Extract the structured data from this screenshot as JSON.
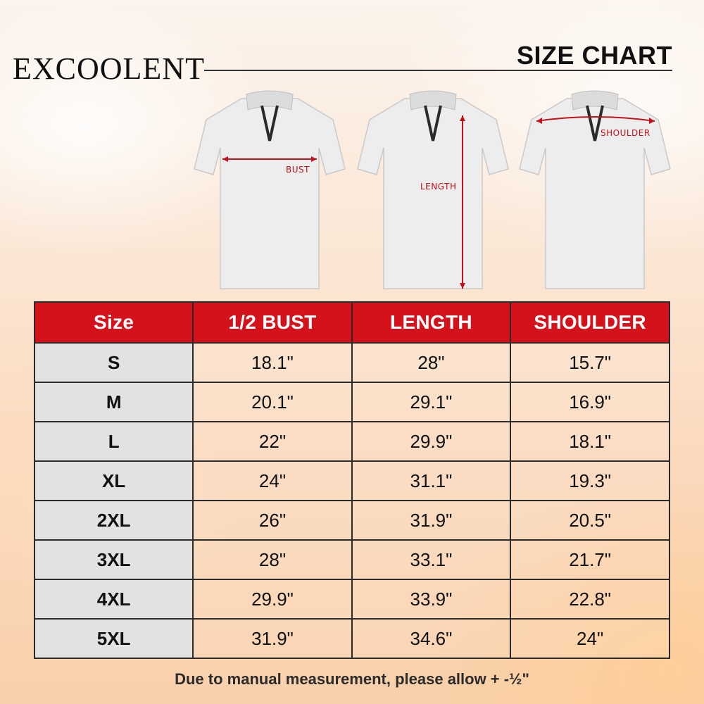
{
  "brand": "EXCOOLENT",
  "title": "SIZE CHART",
  "shirt_labels": {
    "bust": "BUST",
    "length": "LENGTH",
    "shoulder": "SHOULDER"
  },
  "table": {
    "headers": [
      "Size",
      "1/2 BUST",
      "LENGTH",
      "SHOULDER"
    ],
    "rows": [
      [
        "S",
        "18.1\"",
        "28\"",
        "15.7\""
      ],
      [
        "M",
        "20.1\"",
        "29.1\"",
        "16.9\""
      ],
      [
        "L",
        "22\"",
        "29.9\"",
        "18.1\""
      ],
      [
        "XL",
        "24\"",
        "31.1\"",
        "19.3\""
      ],
      [
        "2XL",
        "26\"",
        "31.9\"",
        "20.5\""
      ],
      [
        "3XL",
        "28\"",
        "33.1\"",
        "21.7\""
      ],
      [
        "4XL",
        "29.9\"",
        "33.9\"",
        "22.8\""
      ],
      [
        "5XL",
        "31.9\"",
        "34.6\"",
        "24\""
      ]
    ]
  },
  "footnote": "Due to manual measurement, please allow  + -½\"",
  "colors": {
    "header_red": "#d3121b",
    "measure_red": "#c0121b",
    "size_column_gray": "#e2e2e2"
  }
}
